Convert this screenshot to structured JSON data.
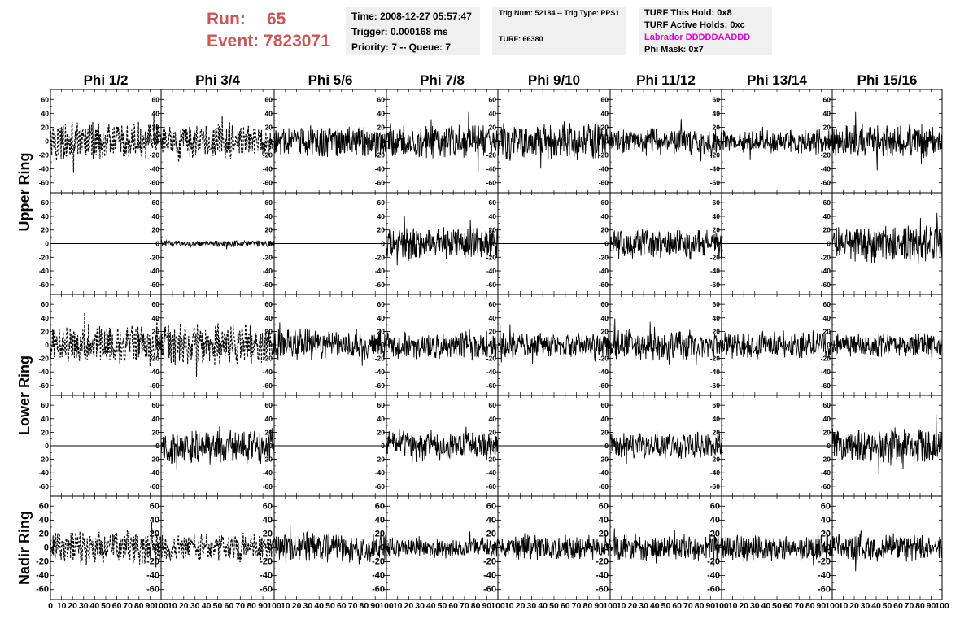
{
  "header": {
    "run_label": "Run:",
    "run_value": "65",
    "event_label": "Event:",
    "event_value": "7823071",
    "time": "Time: 2008-12-27 05:57:47",
    "trigger": "Trigger: 0.000168 ms",
    "priority": "Priority: 7 -- Queue: 7",
    "trig_num": "Trig Num: 52184 -- Trig Type: PPS1",
    "turf": "TURF: 66380",
    "turf_this_hold": "TURF This Hold: 0x8",
    "turf_active_holds": "TURF Active Holds: 0xc",
    "labrador": "Labrador DDDDDAADDD",
    "phi_mask": "Phi Mask: 0x7"
  },
  "colors": {
    "header_text": "#cc5555",
    "labrador": "#e000e0",
    "trace": "#000000",
    "info_bg": "#f0f0f0"
  },
  "chart_data": {
    "type": "line",
    "columns": [
      "Phi 1/2",
      "Phi 3/4",
      "Phi 5/6",
      "Phi 7/8",
      "Phi 9/10",
      "Phi 11/12",
      "Phi 13/14",
      "Phi 15/16"
    ],
    "rows": [
      "Upper Ring",
      "Lower Ring",
      "Nadir Ring"
    ],
    "ylim": [
      -65,
      65
    ],
    "xlim": [
      0,
      100
    ],
    "y_ticks": [
      -60,
      -40,
      -20,
      0,
      20,
      40,
      60
    ],
    "x_tick_labels": [
      "0",
      "10",
      "20",
      "30",
      "40",
      "50",
      "60",
      "70",
      "80",
      "90",
      "100"
    ],
    "panels": [
      {
        "band": 0,
        "col": 0,
        "style": "dashed",
        "amplitude": 22
      },
      {
        "band": 0,
        "col": 1,
        "style": "dashed",
        "amplitude": 20
      },
      {
        "band": 0,
        "col": 2,
        "style": "solid",
        "amplitude": 18
      },
      {
        "band": 0,
        "col": 3,
        "style": "solid",
        "amplitude": 20
      },
      {
        "band": 0,
        "col": 4,
        "style": "solid",
        "amplitude": 22
      },
      {
        "band": 0,
        "col": 5,
        "style": "solid",
        "amplitude": 16
      },
      {
        "band": 0,
        "col": 6,
        "style": "solid",
        "amplitude": 14
      },
      {
        "band": 0,
        "col": 7,
        "style": "solid",
        "amplitude": 20
      },
      {
        "band": 1,
        "col": 0,
        "style": "flat",
        "amplitude": 0
      },
      {
        "band": 1,
        "col": 1,
        "style": "solid",
        "amplitude": 4
      },
      {
        "band": 1,
        "col": 2,
        "style": "flat",
        "amplitude": 0
      },
      {
        "band": 1,
        "col": 3,
        "style": "solid",
        "amplitude": 20
      },
      {
        "band": 1,
        "col": 4,
        "style": "flat",
        "amplitude": 0
      },
      {
        "band": 1,
        "col": 5,
        "style": "solid",
        "amplitude": 18
      },
      {
        "band": 1,
        "col": 6,
        "style": "flat",
        "amplitude": 0
      },
      {
        "band": 1,
        "col": 7,
        "style": "solid",
        "amplitude": 22
      },
      {
        "band": 2,
        "col": 0,
        "style": "dashed",
        "amplitude": 22
      },
      {
        "band": 2,
        "col": 1,
        "style": "dashed",
        "amplitude": 24
      },
      {
        "band": 2,
        "col": 2,
        "style": "solid",
        "amplitude": 20
      },
      {
        "band": 2,
        "col": 3,
        "style": "solid",
        "amplitude": 18
      },
      {
        "band": 2,
        "col": 4,
        "style": "solid",
        "amplitude": 16
      },
      {
        "band": 2,
        "col": 5,
        "style": "solid",
        "amplitude": 18
      },
      {
        "band": 2,
        "col": 6,
        "style": "solid",
        "amplitude": 16
      },
      {
        "band": 2,
        "col": 7,
        "style": "solid",
        "amplitude": 14
      },
      {
        "band": 3,
        "col": 0,
        "style": "flat",
        "amplitude": 0
      },
      {
        "band": 3,
        "col": 1,
        "style": "solid",
        "amplitude": 22
      },
      {
        "band": 3,
        "col": 2,
        "style": "flat",
        "amplitude": 0
      },
      {
        "band": 3,
        "col": 3,
        "style": "solid",
        "amplitude": 18
      },
      {
        "band": 3,
        "col": 4,
        "style": "flat",
        "amplitude": 0
      },
      {
        "band": 3,
        "col": 5,
        "style": "solid",
        "amplitude": 16
      },
      {
        "band": 3,
        "col": 6,
        "style": "flat",
        "amplitude": 0
      },
      {
        "band": 3,
        "col": 7,
        "style": "solid",
        "amplitude": 20
      },
      {
        "band": 4,
        "col": 0,
        "style": "dashed",
        "amplitude": 20
      },
      {
        "band": 4,
        "col": 1,
        "style": "dashed",
        "amplitude": 16
      },
      {
        "band": 4,
        "col": 2,
        "style": "solid",
        "amplitude": 18
      },
      {
        "band": 4,
        "col": 3,
        "style": "solid",
        "amplitude": 12
      },
      {
        "band": 4,
        "col": 4,
        "style": "solid",
        "amplitude": 14
      },
      {
        "band": 4,
        "col": 5,
        "style": "solid",
        "amplitude": 16
      },
      {
        "band": 4,
        "col": 6,
        "style": "solid",
        "amplitude": 16
      },
      {
        "band": 4,
        "col": 7,
        "style": "solid",
        "amplitude": 16
      }
    ]
  }
}
